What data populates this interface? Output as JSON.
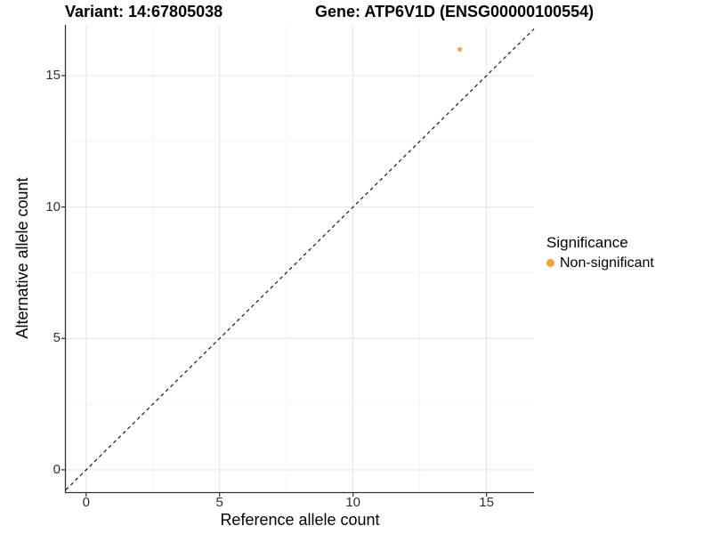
{
  "header": {
    "variant_title": "Variant: 14:67805038",
    "gene_title": "Gene: ATP6V1D (ENSG00000100554)"
  },
  "chart_data": {
    "type": "scatter",
    "titles": [
      "Variant: 14:67805038",
      "Gene: ATP6V1D (ENSG00000100554)"
    ],
    "xlabel": "Reference allele count",
    "ylabel": "Alternative allele count",
    "xlim": [
      -0.76,
      16.78
    ],
    "ylim": [
      -0.85,
      16.93
    ],
    "x_ticks": [
      0,
      5,
      10,
      15
    ],
    "y_ticks": [
      0,
      5,
      10,
      15
    ],
    "x_minor_ticks": [
      2.5,
      7.5,
      12.5
    ],
    "y_minor_ticks": [
      2.5,
      7.5,
      12.5
    ],
    "grid": true,
    "legend_position": "right",
    "series": [
      {
        "name": "Non-significant",
        "color": "#FAA028",
        "points": [
          [
            14,
            16
          ]
        ],
        "point_radius": 2.6
      }
    ],
    "reference_line": {
      "type": "identity",
      "style": "dashed",
      "color": "#1A1A1A"
    },
    "legend": {
      "title": "Significance",
      "items": [
        {
          "label": "Non-significant",
          "color": "#FAA028",
          "marker": "circle"
        }
      ]
    },
    "colors": {
      "background": "#FFFFFF",
      "gridline_major": "#E6E6E6",
      "gridline_minor": "#F2F2F2",
      "axis_line": "#333333",
      "tick_label": "#303030"
    }
  }
}
